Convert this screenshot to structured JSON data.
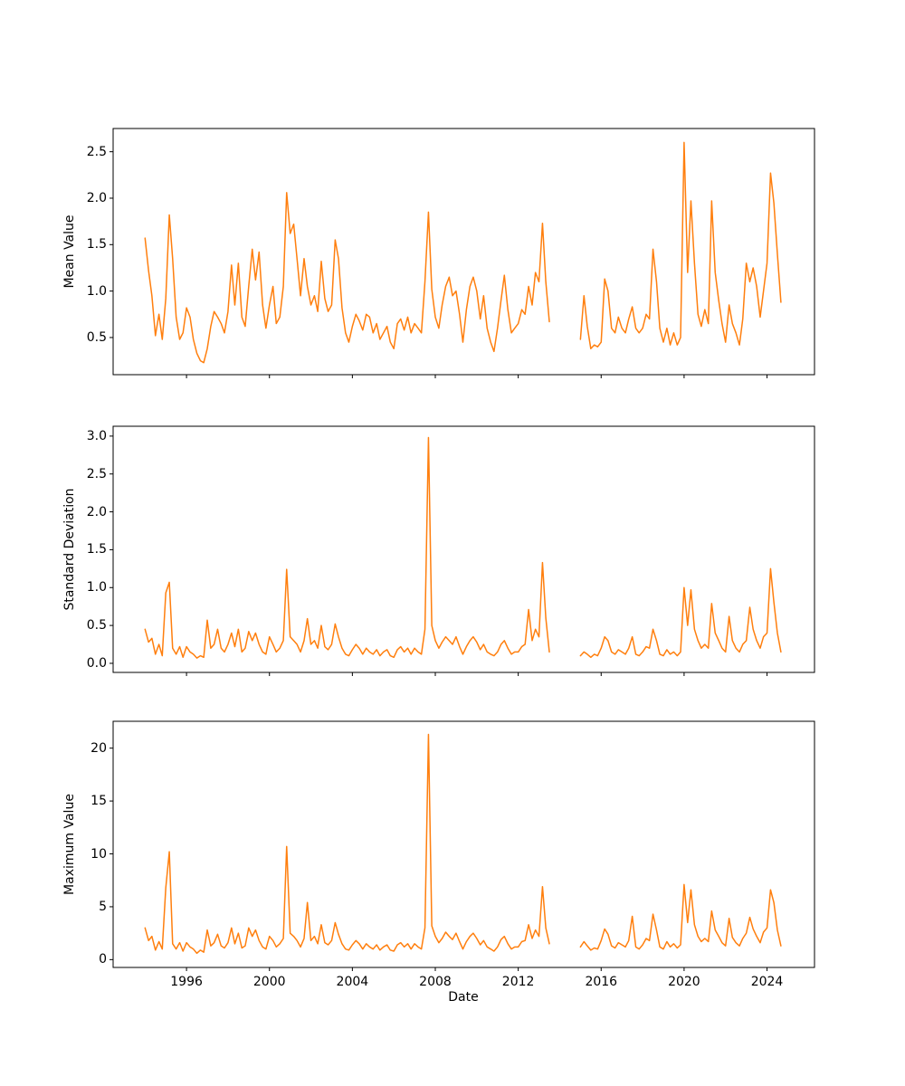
{
  "figure": {
    "background_color": "#ffffff",
    "line_color": "#ff7f0e",
    "spine_color": "#000000",
    "text_color": "#000000"
  },
  "chart_data": {
    "type": "line",
    "xlabel": "Date",
    "legend": "none",
    "grid": false,
    "xlim": [
      1992.46,
      2026.29
    ],
    "x_ticks": [
      1996,
      2000,
      2004,
      2008,
      2012,
      2016,
      2020,
      2024
    ],
    "x_tick_labels": [
      "1996",
      "2000",
      "2004",
      "2008",
      "2012",
      "2016",
      "2020",
      "2024"
    ],
    "x": [
      1994.0,
      1994.17,
      1994.33,
      1994.5,
      1994.67,
      1994.83,
      1995.0,
      1995.17,
      1995.33,
      1995.5,
      1995.67,
      1995.83,
      1996.0,
      1996.17,
      1996.33,
      1996.5,
      1996.67,
      1996.83,
      1997.0,
      1997.17,
      1997.33,
      1997.5,
      1997.67,
      1997.83,
      1998.0,
      1998.17,
      1998.33,
      1998.5,
      1998.67,
      1998.83,
      1999.0,
      1999.17,
      1999.33,
      1999.5,
      1999.67,
      1999.83,
      2000.0,
      2000.17,
      2000.33,
      2000.5,
      2000.67,
      2000.83,
      2001.0,
      2001.17,
      2001.33,
      2001.5,
      2001.67,
      2001.83,
      2002.0,
      2002.17,
      2002.33,
      2002.5,
      2002.67,
      2002.83,
      2003.0,
      2003.17,
      2003.33,
      2003.5,
      2003.67,
      2003.83,
      2004.0,
      2004.17,
      2004.33,
      2004.5,
      2004.67,
      2004.83,
      2005.0,
      2005.17,
      2005.33,
      2005.5,
      2005.67,
      2005.83,
      2006.0,
      2006.17,
      2006.33,
      2006.5,
      2006.67,
      2006.83,
      2007.0,
      2007.17,
      2007.33,
      2007.5,
      2007.67,
      2007.83,
      2008.0,
      2008.17,
      2008.33,
      2008.5,
      2008.67,
      2008.83,
      2009.0,
      2009.17,
      2009.33,
      2009.5,
      2009.67,
      2009.83,
      2010.0,
      2010.17,
      2010.33,
      2010.5,
      2010.67,
      2010.83,
      2011.0,
      2011.17,
      2011.33,
      2011.5,
      2011.67,
      2011.83,
      2012.0,
      2012.17,
      2012.33,
      2012.5,
      2012.67,
      2012.83,
      2013.0,
      2013.17,
      2013.33,
      2013.5,
      2014.0,
      2014.5,
      2015.0,
      2015.17,
      2015.33,
      2015.5,
      2015.67,
      2015.83,
      2016.0,
      2016.17,
      2016.33,
      2016.5,
      2016.67,
      2016.83,
      2017.0,
      2017.17,
      2017.33,
      2017.5,
      2017.67,
      2017.83,
      2018.0,
      2018.17,
      2018.33,
      2018.5,
      2018.67,
      2018.83,
      2019.0,
      2019.17,
      2019.33,
      2019.5,
      2019.67,
      2019.83,
      2020.0,
      2020.17,
      2020.33,
      2020.5,
      2020.67,
      2020.83,
      2021.0,
      2021.17,
      2021.33,
      2021.5,
      2021.67,
      2021.83,
      2022.0,
      2022.17,
      2022.33,
      2022.5,
      2022.67,
      2022.83,
      2023.0,
      2023.17,
      2023.33,
      2023.5,
      2023.67,
      2023.83,
      2024.0,
      2024.17,
      2024.33,
      2024.5,
      2024.67
    ],
    "subplots": [
      {
        "ylabel": "Mean Value",
        "y_ticks": [
          0.5,
          1.0,
          1.5,
          2.0,
          2.5
        ],
        "y_tick_labels": [
          "0.5",
          "1.0",
          "1.5",
          "2.0",
          "2.5"
        ],
        "ylim": [
          0.1,
          2.75
        ]
      },
      {
        "ylabel": "Standard Deviation",
        "y_ticks": [
          0.0,
          0.5,
          1.0,
          1.5,
          2.0,
          2.5,
          3.0
        ],
        "y_tick_labels": [
          "0.0",
          "0.5",
          "1.0",
          "1.5",
          "2.0",
          "2.5",
          "3.0"
        ],
        "ylim": [
          -0.12,
          3.13
        ]
      },
      {
        "ylabel": "Maximum Value",
        "y_ticks": [
          0,
          5,
          10,
          15,
          20
        ],
        "y_tick_labels": [
          "0",
          "5",
          "10",
          "15",
          "20"
        ],
        "ylim": [
          -0.74,
          22.54
        ]
      }
    ],
    "series": [
      {
        "name": "Mean Value",
        "values": [
          1.57,
          1.22,
          0.95,
          0.52,
          0.75,
          0.48,
          0.92,
          1.82,
          1.35,
          0.72,
          0.48,
          0.55,
          0.82,
          0.72,
          0.48,
          0.33,
          0.25,
          0.23,
          0.38,
          0.62,
          0.78,
          0.72,
          0.65,
          0.55,
          0.78,
          1.28,
          0.85,
          1.3,
          0.72,
          0.62,
          1.05,
          1.45,
          1.12,
          1.42,
          0.85,
          0.6,
          0.85,
          1.05,
          0.65,
          0.72,
          1.05,
          2.06,
          1.62,
          1.72,
          1.35,
          0.95,
          1.35,
          1.05,
          0.85,
          0.95,
          0.78,
          1.32,
          0.92,
          0.78,
          0.85,
          1.55,
          1.35,
          0.82,
          0.55,
          0.45,
          0.62,
          0.75,
          0.68,
          0.58,
          0.75,
          0.72,
          0.55,
          0.65,
          0.48,
          0.55,
          0.62,
          0.45,
          0.38,
          0.65,
          0.7,
          0.58,
          0.72,
          0.55,
          0.65,
          0.6,
          0.55,
          1.1,
          1.85,
          1.02,
          0.72,
          0.6,
          0.85,
          1.05,
          1.15,
          0.95,
          1.0,
          0.75,
          0.45,
          0.8,
          1.05,
          1.15,
          1.0,
          0.7,
          0.95,
          0.6,
          0.45,
          0.35,
          0.6,
          0.9,
          1.17,
          0.8,
          0.55,
          0.6,
          0.65,
          0.8,
          0.75,
          1.05,
          0.85,
          1.2,
          1.1,
          1.73,
          1.1,
          0.67,
          null,
          null,
          0.48,
          0.95,
          0.62,
          0.38,
          0.42,
          0.4,
          0.45,
          1.13,
          1.0,
          0.6,
          0.55,
          0.72,
          0.6,
          0.55,
          0.7,
          0.83,
          0.6,
          0.55,
          0.6,
          0.75,
          0.7,
          1.45,
          1.1,
          0.6,
          0.45,
          0.6,
          0.42,
          0.55,
          0.42,
          0.5,
          2.6,
          1.2,
          1.97,
          1.3,
          0.75,
          0.62,
          0.8,
          0.65,
          1.97,
          1.2,
          0.9,
          0.65,
          0.45,
          0.85,
          0.65,
          0.55,
          0.42,
          0.7,
          1.3,
          1.1,
          1.25,
          1.05,
          0.72,
          1.0,
          1.3,
          2.27,
          1.95,
          1.4,
          0.88
        ]
      },
      {
        "name": "Standard Deviation",
        "values": [
          0.45,
          0.28,
          0.33,
          0.12,
          0.25,
          0.1,
          0.93,
          1.07,
          0.2,
          0.12,
          0.22,
          0.08,
          0.22,
          0.15,
          0.12,
          0.07,
          0.1,
          0.08,
          0.57,
          0.2,
          0.25,
          0.45,
          0.2,
          0.15,
          0.25,
          0.4,
          0.22,
          0.45,
          0.15,
          0.2,
          0.42,
          0.3,
          0.4,
          0.25,
          0.15,
          0.12,
          0.35,
          0.25,
          0.15,
          0.2,
          0.3,
          1.24,
          0.35,
          0.3,
          0.25,
          0.15,
          0.3,
          0.59,
          0.25,
          0.3,
          0.2,
          0.5,
          0.22,
          0.18,
          0.25,
          0.52,
          0.35,
          0.2,
          0.12,
          0.1,
          0.18,
          0.25,
          0.2,
          0.12,
          0.2,
          0.15,
          0.12,
          0.18,
          0.1,
          0.15,
          0.18,
          0.1,
          0.08,
          0.18,
          0.22,
          0.15,
          0.2,
          0.12,
          0.2,
          0.15,
          0.12,
          0.45,
          2.98,
          0.5,
          0.3,
          0.2,
          0.28,
          0.35,
          0.3,
          0.25,
          0.35,
          0.22,
          0.12,
          0.22,
          0.3,
          0.35,
          0.28,
          0.18,
          0.25,
          0.15,
          0.12,
          0.1,
          0.15,
          0.25,
          0.3,
          0.2,
          0.12,
          0.15,
          0.15,
          0.22,
          0.25,
          0.71,
          0.3,
          0.45,
          0.35,
          1.33,
          0.6,
          0.15,
          null,
          null,
          0.1,
          0.15,
          0.12,
          0.08,
          0.12,
          0.1,
          0.2,
          0.35,
          0.3,
          0.15,
          0.12,
          0.18,
          0.15,
          0.12,
          0.2,
          0.35,
          0.12,
          0.1,
          0.15,
          0.22,
          0.2,
          0.45,
          0.3,
          0.12,
          0.1,
          0.18,
          0.12,
          0.15,
          0.1,
          0.15,
          1.0,
          0.5,
          0.97,
          0.45,
          0.3,
          0.2,
          0.25,
          0.2,
          0.79,
          0.4,
          0.3,
          0.2,
          0.15,
          0.62,
          0.3,
          0.2,
          0.15,
          0.25,
          0.3,
          0.74,
          0.45,
          0.3,
          0.2,
          0.35,
          0.4,
          1.25,
          0.81,
          0.4,
          0.15
        ]
      },
      {
        "name": "Maximum Value",
        "values": [
          3.0,
          1.8,
          2.2,
          0.9,
          1.7,
          1.0,
          6.8,
          10.2,
          1.5,
          1.0,
          1.6,
          0.8,
          1.6,
          1.2,
          1.0,
          0.6,
          0.9,
          0.7,
          2.8,
          1.3,
          1.6,
          2.4,
          1.3,
          1.1,
          1.6,
          3.0,
          1.5,
          2.5,
          1.1,
          1.3,
          3.0,
          2.2,
          2.8,
          1.8,
          1.2,
          1.0,
          2.2,
          1.8,
          1.2,
          1.5,
          2.0,
          10.7,
          2.5,
          2.2,
          1.8,
          1.2,
          2.0,
          5.4,
          1.8,
          2.2,
          1.5,
          3.3,
          1.6,
          1.4,
          1.8,
          3.5,
          2.4,
          1.5,
          1.0,
          0.9,
          1.4,
          1.8,
          1.5,
          1.0,
          1.5,
          1.2,
          1.0,
          1.4,
          0.9,
          1.2,
          1.4,
          0.9,
          0.8,
          1.4,
          1.6,
          1.2,
          1.5,
          1.0,
          1.5,
          1.2,
          1.0,
          3.0,
          21.3,
          3.2,
          2.2,
          1.6,
          2.0,
          2.6,
          2.2,
          1.9,
          2.5,
          1.7,
          1.0,
          1.7,
          2.2,
          2.5,
          2.0,
          1.4,
          1.8,
          1.2,
          1.0,
          0.8,
          1.2,
          1.9,
          2.2,
          1.5,
          1.0,
          1.2,
          1.2,
          1.7,
          1.8,
          3.3,
          2.0,
          2.8,
          2.2,
          6.9,
          3.0,
          1.5,
          null,
          null,
          1.2,
          1.7,
          1.3,
          0.9,
          1.1,
          1.0,
          1.8,
          2.9,
          2.4,
          1.3,
          1.1,
          1.6,
          1.4,
          1.2,
          1.8,
          4.1,
          1.2,
          1.0,
          1.4,
          2.0,
          1.8,
          4.3,
          2.8,
          1.2,
          1.0,
          1.7,
          1.2,
          1.5,
          1.1,
          1.4,
          7.1,
          3.5,
          6.6,
          3.3,
          2.2,
          1.7,
          2.0,
          1.7,
          4.6,
          2.8,
          2.2,
          1.6,
          1.3,
          3.9,
          2.1,
          1.6,
          1.3,
          2.0,
          2.5,
          4.0,
          2.9,
          2.2,
          1.6,
          2.6,
          3.0,
          6.6,
          5.4,
          2.8,
          1.3
        ]
      }
    ]
  }
}
